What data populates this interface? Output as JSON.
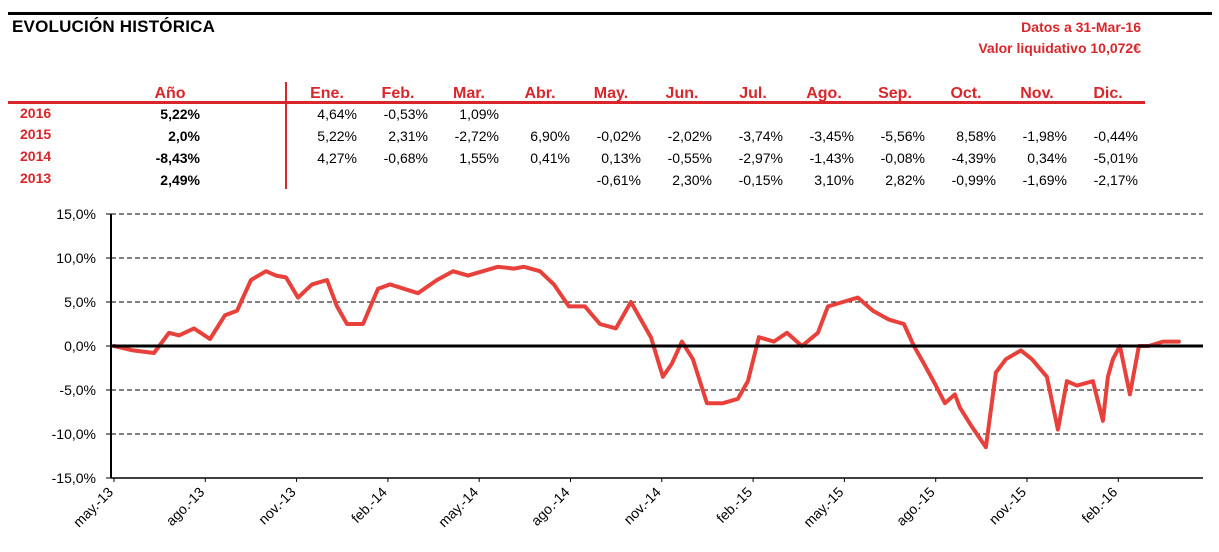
{
  "header": {
    "title": "EVOLUCIÓN HISTÓRICA",
    "date_label": "Datos a 31-Mar-16",
    "nav_label": "Valor liquidativo 10,072€"
  },
  "returns_table": {
    "year_header": "Año",
    "months": [
      "Ene.",
      "Feb.",
      "Mar.",
      "Abr.",
      "May.",
      "Jun.",
      "Jul.",
      "Ago.",
      "Sep.",
      "Oct.",
      "Nov.",
      "Dic."
    ],
    "rows": [
      {
        "year": "2016",
        "total": "5,22%",
        "cells": [
          "4,64%",
          "-0,53%",
          "1,09%",
          "",
          "",
          "",
          "",
          "",
          "",
          "",
          "",
          ""
        ]
      },
      {
        "year": "2015",
        "total": "2,0%",
        "cells": [
          "5,22%",
          "2,31%",
          "-2,72%",
          "6,90%",
          "-0,02%",
          "-2,02%",
          "-3,74%",
          "-3,45%",
          "-5,56%",
          "8,58%",
          "-1,98%",
          "-0,44%"
        ]
      },
      {
        "year": "2014",
        "total": "-8,43%",
        "cells": [
          "4,27%",
          "-0,68%",
          "1,55%",
          "0,41%",
          "0,13%",
          "-0,55%",
          "-2,97%",
          "-1,43%",
          "-0,08%",
          "-4,39%",
          "0,34%",
          "-5,01%"
        ]
      },
      {
        "year": "2013",
        "total": "2,49%",
        "cells": [
          "",
          "",
          "",
          "",
          "-0,61%",
          "2,30%",
          "-0,15%",
          "3,10%",
          "2,82%",
          "-0,99%",
          "-1,69%",
          "-2,17%"
        ]
      }
    ]
  },
  "chart_data": {
    "type": "line",
    "title": "",
    "xlabel": "",
    "ylabel": "",
    "ylim": [
      -15,
      15
    ],
    "y_ticks": [
      "15,0%",
      "10,0%",
      "5,0%",
      "0,0%",
      "-5,0%",
      "-10,0%",
      "-15,0%"
    ],
    "x_ticks": [
      "may.-13",
      "ago.-13",
      "nov.-13",
      "feb.-14",
      "may.-14",
      "ago.-14",
      "nov.-14",
      "feb.-15",
      "may.-15",
      "ago.-15",
      "nov.-15",
      "feb.-16"
    ],
    "grid": true,
    "legend": "none",
    "line_color": "#e8403a",
    "series": [
      {
        "x": [
          "2013-05-01",
          "2013-05-20",
          "2013-06-10",
          "2013-06-25",
          "2013-07-05",
          "2013-07-20",
          "2013-08-05",
          "2013-08-20",
          "2013-09-01",
          "2013-09-15",
          "2013-09-30",
          "2013-10-10",
          "2013-10-20",
          "2013-11-01",
          "2013-11-15",
          "2013-11-30",
          "2013-12-10",
          "2013-12-20",
          "2014-01-05",
          "2014-01-20",
          "2014-02-01",
          "2014-02-15",
          "2014-03-01",
          "2014-03-20",
          "2014-04-05",
          "2014-04-20",
          "2014-05-05",
          "2014-05-20",
          "2014-06-05",
          "2014-06-15",
          "2014-07-01",
          "2014-07-15",
          "2014-07-30",
          "2014-08-15",
          "2014-08-30",
          "2014-09-15",
          "2014-09-30",
          "2014-10-10",
          "2014-10-20",
          "2014-11-01",
          "2014-11-10",
          "2014-11-20",
          "2014-12-01",
          "2014-12-15",
          "2014-12-31",
          "2015-01-15",
          "2015-01-25",
          "2015-02-05",
          "2015-02-20",
          "2015-03-05",
          "2015-03-20",
          "2015-04-05",
          "2015-04-15",
          "2015-04-30",
          "2015-05-15",
          "2015-05-30",
          "2015-06-15",
          "2015-06-30",
          "2015-07-10",
          "2015-07-20",
          "2015-08-01",
          "2015-08-10",
          "2015-08-20",
          "2015-08-25",
          "2015-09-05",
          "2015-09-20",
          "2015-09-30",
          "2015-10-10",
          "2015-10-25",
          "2015-11-05",
          "2015-11-20",
          "2015-12-01",
          "2015-12-10",
          "2015-12-20",
          "2016-01-05",
          "2016-01-15",
          "2016-01-20",
          "2016-01-25",
          "2016-02-01",
          "2016-02-11",
          "2016-02-20",
          "2016-03-01",
          "2016-03-15",
          "2016-03-31"
        ],
        "y": [
          0.0,
          -0.5,
          -0.8,
          1.5,
          1.2,
          2.0,
          0.8,
          3.5,
          4.0,
          7.5,
          8.5,
          8.0,
          7.8,
          5.5,
          7.0,
          7.5,
          4.5,
          2.5,
          2.5,
          6.5,
          7.0,
          6.5,
          6.0,
          7.5,
          8.5,
          8.0,
          8.5,
          9.0,
          8.8,
          9.0,
          8.5,
          7.0,
          4.5,
          4.5,
          2.5,
          2.0,
          5.0,
          3.0,
          1.0,
          -3.5,
          -2.0,
          0.5,
          -1.5,
          -6.5,
          -6.5,
          -6.0,
          -4.0,
          1.0,
          0.5,
          1.5,
          0.0,
          1.5,
          4.5,
          5.0,
          5.5,
          4.0,
          3.0,
          2.5,
          0.0,
          -2.0,
          -4.5,
          -6.5,
          -5.5,
          -7.0,
          -9.0,
          -11.5,
          -3.0,
          -1.5,
          -0.5,
          -1.5,
          -3.5,
          -9.5,
          -4.0,
          -4.5,
          -4.0,
          -8.5,
          -3.5,
          -1.5,
          0.0,
          -5.5,
          0.0,
          0.0,
          0.5,
          0.5
        ]
      }
    ]
  }
}
